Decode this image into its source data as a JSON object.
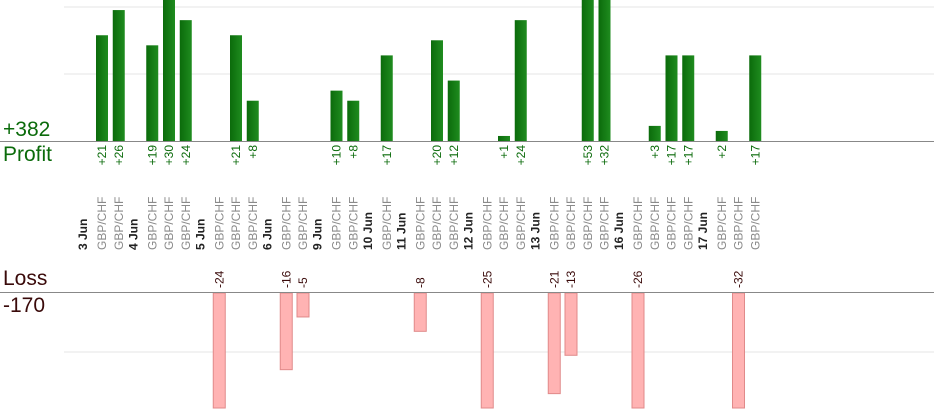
{
  "summary": {
    "profit_total": "+382",
    "profit_label": "Profit",
    "loss_label": "Loss",
    "loss_total": "-170"
  },
  "colors": {
    "profit_bar": "#0b6b0b",
    "profit_bar_light": "#1f8c1f",
    "loss_bar": "#ffb3b3",
    "loss_bar_border": "#e08a8a",
    "profit_text": "#0b6b0b",
    "loss_text": "#3a0a0a",
    "pair_text": "#8a8a8a",
    "date_text": "#222222",
    "grid": "#e6e6e6",
    "axis": "#888888"
  },
  "chart_data": {
    "type": "bar",
    "grid": true,
    "profit_ylim": [
      0,
      28
    ],
    "loss_ylim": [
      0,
      24
    ],
    "groups": [
      {
        "date": "3 Jun",
        "trades": [
          {
            "pair": "GBP/CHF",
            "label": "+21",
            "value": 21
          },
          {
            "pair": "GBP/CHF",
            "label": "+26",
            "value": 26
          }
        ]
      },
      {
        "date": "4 Jun",
        "trades": [
          {
            "pair": "GBP/CHF",
            "label": "+19",
            "value": 19
          },
          {
            "pair": "GBP/CHF",
            "label": "+30",
            "value": 30
          },
          {
            "pair": "GBP/CHF",
            "label": "+24",
            "value": 24
          }
        ]
      },
      {
        "date": "5 Jun",
        "trades": [
          {
            "pair": "GBP/CHF",
            "label": "-24",
            "value": -24
          },
          {
            "pair": "GBP/CHF",
            "label": "+21",
            "value": 21
          },
          {
            "pair": "GBP/CHF",
            "label": "+8",
            "value": 8
          }
        ]
      },
      {
        "date": "6 Jun",
        "trades": [
          {
            "pair": "GBP/CHF",
            "label": "-16",
            "value": -16
          },
          {
            "pair": "GBP/CHF",
            "label": "-5",
            "value": -5
          }
        ]
      },
      {
        "date": "9 Jun",
        "trades": [
          {
            "pair": "GBP/CHF",
            "label": "+10",
            "value": 10
          },
          {
            "pair": "GBP/CHF",
            "label": "+8",
            "value": 8
          }
        ]
      },
      {
        "date": "10 Jun",
        "trades": [
          {
            "pair": "GBP/CHF",
            "label": "+17",
            "value": 17
          }
        ]
      },
      {
        "date": "11 Jun",
        "trades": [
          {
            "pair": "GBP/CHF",
            "label": "-8",
            "value": -8
          },
          {
            "pair": "GBP/CHF",
            "label": "+20",
            "value": 20
          },
          {
            "pair": "GBP/CHF",
            "label": "+12",
            "value": 12
          }
        ]
      },
      {
        "date": "12 Jun",
        "trades": [
          {
            "pair": "GBP/CHF",
            "label": "-25",
            "value": -25
          },
          {
            "pair": "GBP/CHF",
            "label": "+1",
            "value": 1
          },
          {
            "pair": "GBP/CHF",
            "label": "+24",
            "value": 24
          }
        ]
      },
      {
        "date": "13 Jun",
        "trades": [
          {
            "pair": "GBP/CHF",
            "label": "-21",
            "value": -21
          },
          {
            "pair": "GBP/CHF",
            "label": "-13",
            "value": -13
          },
          {
            "pair": "GBP/CHF",
            "label": "+53",
            "value": 53
          },
          {
            "pair": "GBP/CHF",
            "label": "+32",
            "value": 32
          }
        ]
      },
      {
        "date": "16 Jun",
        "trades": [
          {
            "pair": "GBP/CHF",
            "label": "-26",
            "value": -26
          },
          {
            "pair": "GBP/CHF",
            "label": "+3",
            "value": 3
          },
          {
            "pair": "GBP/CHF",
            "label": "+17",
            "value": 17
          },
          {
            "pair": "GBP/CHF",
            "label": "+17",
            "value": 17
          }
        ]
      },
      {
        "date": "17 Jun",
        "trades": [
          {
            "pair": "GBP/CHF",
            "label": "+2",
            "value": 2
          },
          {
            "pair": "GBP/CHF",
            "label": "-32",
            "value": -32
          },
          {
            "pair": "GBP/CHF",
            "label": "+17",
            "value": 17
          }
        ]
      }
    ]
  }
}
